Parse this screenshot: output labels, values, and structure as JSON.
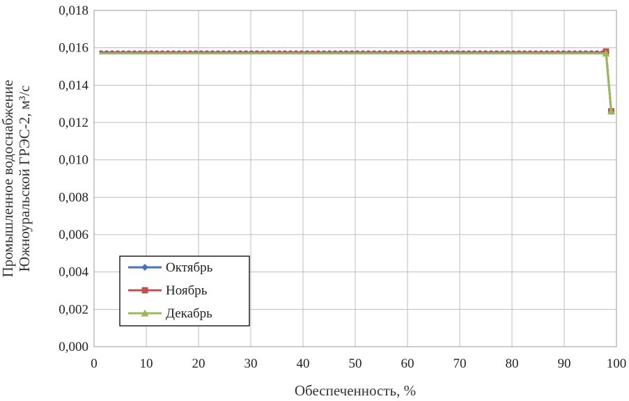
{
  "chart_data": {
    "type": "line",
    "xlabel": "Обеспеченность, %",
    "ylabel_lines": [
      "Промышленное водоснабжение",
      "Южноуральской ГРЭС-2, м³/с"
    ],
    "xlim": [
      0,
      100
    ],
    "ylim": [
      0,
      0.018
    ],
    "x_ticks": [
      0,
      10,
      20,
      30,
      40,
      50,
      60,
      70,
      80,
      90,
      100
    ],
    "x_tick_labels": [
      "0",
      "10",
      "20",
      "30",
      "40",
      "50",
      "60",
      "70",
      "80",
      "90",
      "100"
    ],
    "y_ticks": [
      0,
      0.002,
      0.004,
      0.006,
      0.008,
      0.01,
      0.012,
      0.014,
      0.016,
      0.018
    ],
    "y_tick_labels": [
      "0,000",
      "0,002",
      "0,004",
      "0,006",
      "0,008",
      "0,010",
      "0,012",
      "0,014",
      "0,016",
      "0,018"
    ],
    "grid": true,
    "legend_position": "bottom-left",
    "series": [
      {
        "name": "Октябрь",
        "color": "#4472C4",
        "marker": "diamond",
        "x": [
          1,
          98,
          99
        ],
        "y": [
          0.01575,
          0.01575,
          0.0126
        ]
      },
      {
        "name": "Ноябрь",
        "color": "#C0504D",
        "marker": "square",
        "x": [
          1,
          98,
          99
        ],
        "y": [
          0.0158,
          0.0158,
          0.0126
        ]
      },
      {
        "name": "Декабрь",
        "color": "#9BBB59",
        "marker": "triangle",
        "x": [
          1,
          98,
          99
        ],
        "y": [
          0.0157,
          0.0157,
          0.0126
        ]
      }
    ]
  }
}
